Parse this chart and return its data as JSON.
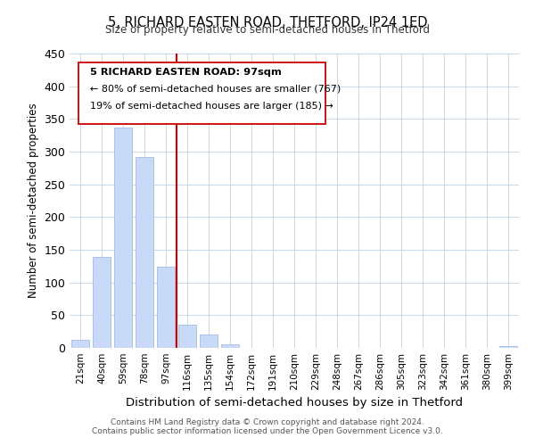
{
  "title": "5, RICHARD EASTEN ROAD, THETFORD, IP24 1ED",
  "subtitle": "Size of property relative to semi-detached houses in Thetford",
  "xlabel": "Distribution of semi-detached houses by size in Thetford",
  "ylabel": "Number of semi-detached properties",
  "bar_labels": [
    "21sqm",
    "40sqm",
    "59sqm",
    "78sqm",
    "97sqm",
    "116sqm",
    "135sqm",
    "154sqm",
    "172sqm",
    "191sqm",
    "210sqm",
    "229sqm",
    "248sqm",
    "267sqm",
    "286sqm",
    "305sqm",
    "323sqm",
    "342sqm",
    "361sqm",
    "380sqm",
    "399sqm"
  ],
  "bar_values": [
    12,
    139,
    337,
    292,
    124,
    35,
    20,
    6,
    0,
    0,
    0,
    0,
    0,
    0,
    0,
    0,
    0,
    0,
    0,
    0,
    3
  ],
  "bar_color": "#c9daf8",
  "bar_edge_color": "#a4bce0",
  "vline_x": 4.5,
  "vline_color": "#cc0000",
  "ylim": [
    0,
    450
  ],
  "yticks": [
    0,
    50,
    100,
    150,
    200,
    250,
    300,
    350,
    400,
    450
  ],
  "annotation_title": "5 RICHARD EASTEN ROAD: 97sqm",
  "annotation_line1": "← 80% of semi-detached houses are smaller (767)",
  "annotation_line2": "19% of semi-detached houses are larger (185) →",
  "footer1": "Contains HM Land Registry data © Crown copyright and database right 2024.",
  "footer2": "Contains public sector information licensed under the Open Government Licence v3.0.",
  "bg_color": "#ffffff",
  "grid_color": "#c8d8ec"
}
